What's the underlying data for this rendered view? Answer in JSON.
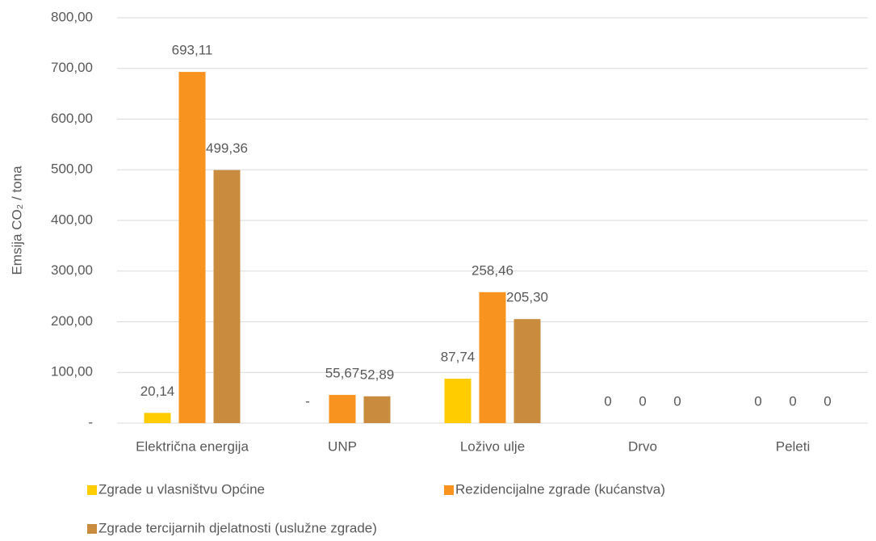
{
  "chart_data": {
    "type": "bar",
    "y_label": "Emsija CO₂ / tona",
    "categories": [
      "Električna energija",
      "UNP",
      "Loživo ulje",
      "Drvo",
      "Peleti"
    ],
    "series": [
      {
        "name": "Zgrade u vlasništvu Općine",
        "color": "#ffcc00",
        "values": [
          20.14,
          0,
          87.74,
          0,
          0
        ],
        "value_labels": [
          "20,14",
          "-",
          "87,74",
          "0",
          "0"
        ]
      },
      {
        "name": "Rezidencijalne zgrade (kućanstva)",
        "color": "#f7931e",
        "values": [
          693.11,
          55.67,
          258.46,
          0,
          0
        ],
        "value_labels": [
          "693,11",
          "55,67",
          "258,46",
          "0",
          "0"
        ]
      },
      {
        "name": "Zgrade tercijarnih djelatnosti (uslužne zgrade)",
        "color": "#c98b3e",
        "values": [
          499.36,
          52.89,
          205.3,
          0,
          0
        ],
        "value_labels": [
          "499,36",
          "52,89",
          "205,30",
          "0",
          "0"
        ]
      }
    ],
    "ylim": [
      0,
      800
    ],
    "yticks": [
      {
        "value": 0,
        "label": "-"
      },
      {
        "value": 100,
        "label": "100,00"
      },
      {
        "value": 200,
        "label": "200,00"
      },
      {
        "value": 300,
        "label": "300,00"
      },
      {
        "value": 400,
        "label": "400,00"
      },
      {
        "value": 500,
        "label": "500,00"
      },
      {
        "value": 600,
        "label": "600,00"
      },
      {
        "value": 700,
        "label": "700,00"
      },
      {
        "value": 800,
        "label": "800,00"
      }
    ],
    "grid": true
  }
}
